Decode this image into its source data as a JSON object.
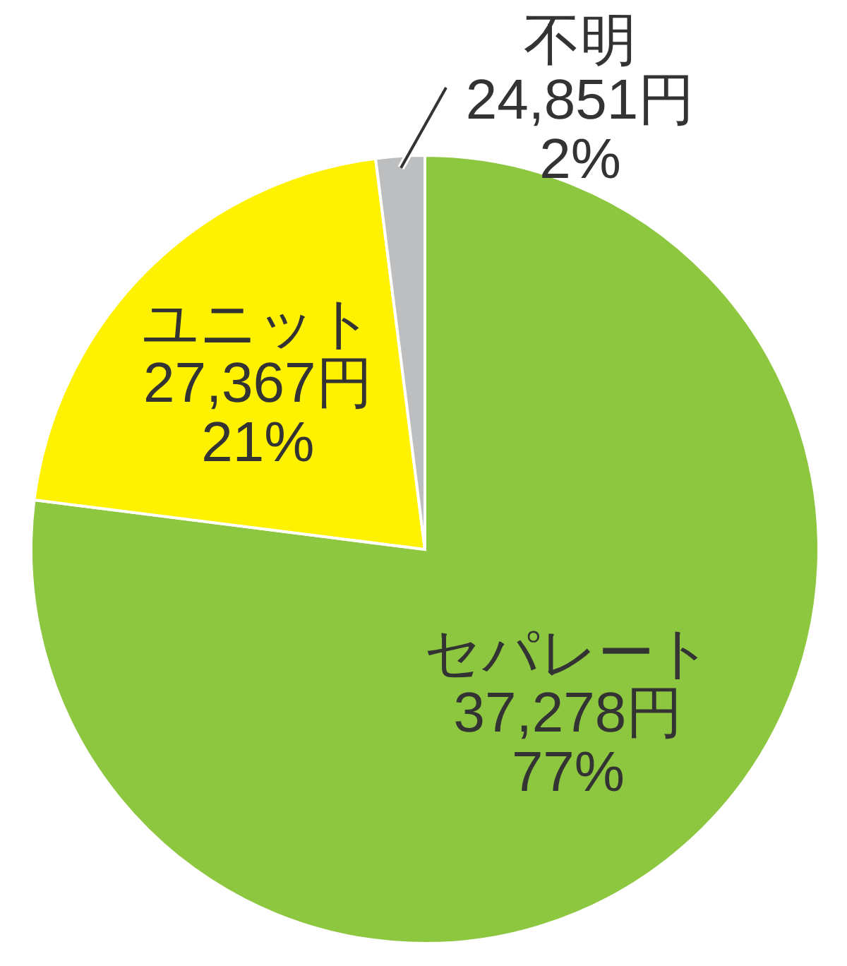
{
  "chart_data": {
    "type": "pie",
    "categories": [
      "セパレート",
      "ユニット",
      "不明"
    ],
    "values": [
      77,
      21,
      2
    ],
    "colors": [
      "#8dc63f",
      "#fff200",
      "#bcbec0"
    ],
    "value_labels": [
      "37,278円\n77%",
      "27,367円\n21%",
      "24,851円\n2%"
    ]
  }
}
